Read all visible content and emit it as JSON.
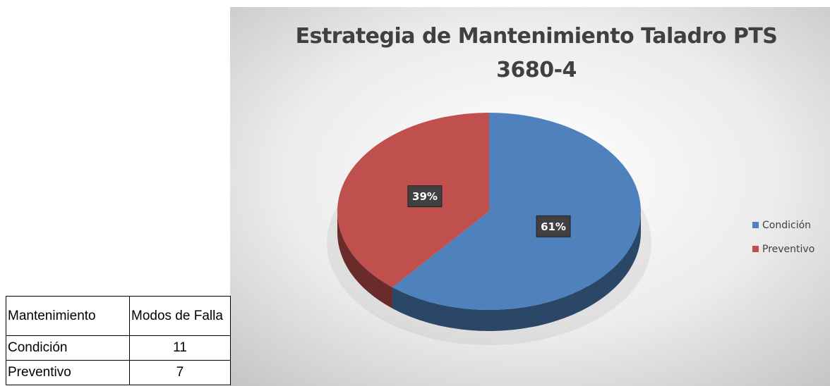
{
  "table": {
    "header": [
      "Mantenimiento",
      "Modos de Falla"
    ],
    "rows": [
      [
        "Condición",
        11
      ],
      [
        "Preventivo",
        7
      ]
    ]
  },
  "chart_data": {
    "type": "pie",
    "title": "Estrategia de Mantenimiento Taladro PTS 3680-4",
    "categories": [
      "Condición",
      "Preventivo"
    ],
    "values": [
      61,
      39
    ],
    "value_labels": [
      "61%",
      "39%"
    ],
    "colors": [
      "#4f81bd",
      "#c0504d"
    ],
    "legend": "right"
  }
}
